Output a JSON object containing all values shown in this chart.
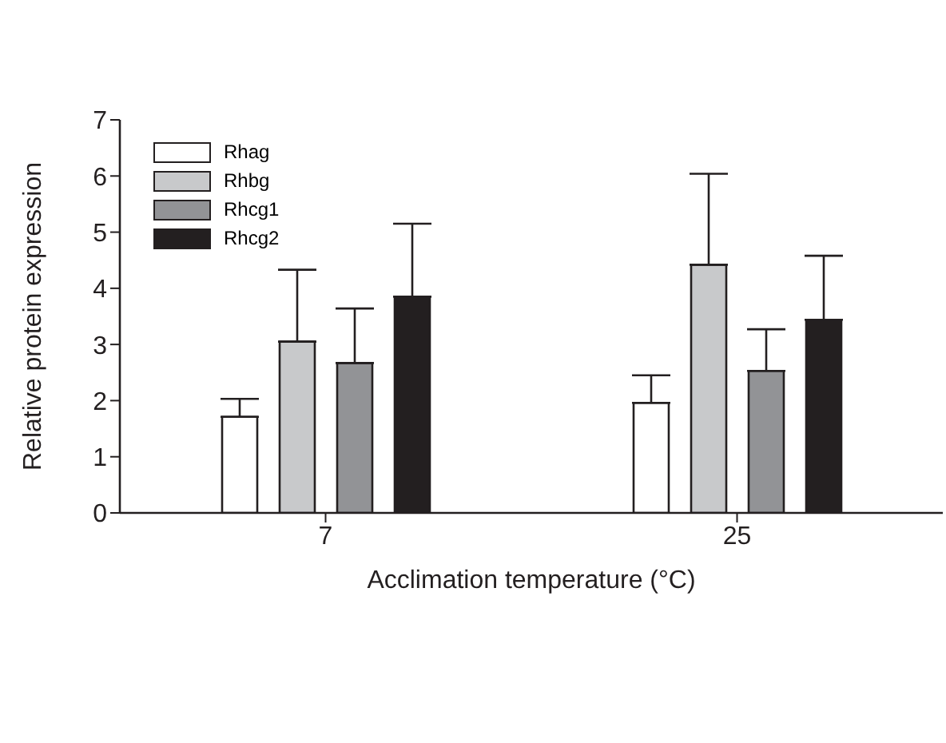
{
  "chart_data": {
    "type": "bar",
    "xlabel": "Acclimation temperature (°C)",
    "ylabel": "Relative protein expression",
    "categories": [
      "7",
      "25"
    ],
    "series": [
      {
        "name": "Rhag",
        "color": "#ffffff",
        "values": [
          1.71,
          1.96
        ],
        "errors": [
          [
            1.71,
            2.03
          ],
          [
            1.96,
            2.45
          ]
        ]
      },
      {
        "name": "Rhbg",
        "color": "#c8c9cb",
        "values": [
          3.05,
          4.42
        ],
        "errors": [
          [
            3.05,
            4.33
          ],
          [
            4.42,
            6.04
          ]
        ]
      },
      {
        "name": "Rhcg1",
        "color": "#929396",
        "values": [
          2.67,
          2.53
        ],
        "errors": [
          [
            2.67,
            3.64
          ],
          [
            2.53,
            3.27
          ]
        ]
      },
      {
        "name": "Rhcg2",
        "color": "#231f20",
        "values": [
          3.85,
          3.44
        ],
        "errors": [
          [
            3.85,
            5.15
          ],
          [
            3.44,
            4.58
          ]
        ]
      }
    ],
    "ylim": [
      0,
      7
    ],
    "yticks": [
      0,
      1,
      2,
      3,
      4,
      5,
      6,
      7
    ],
    "grid": false,
    "legend": "top left"
  }
}
